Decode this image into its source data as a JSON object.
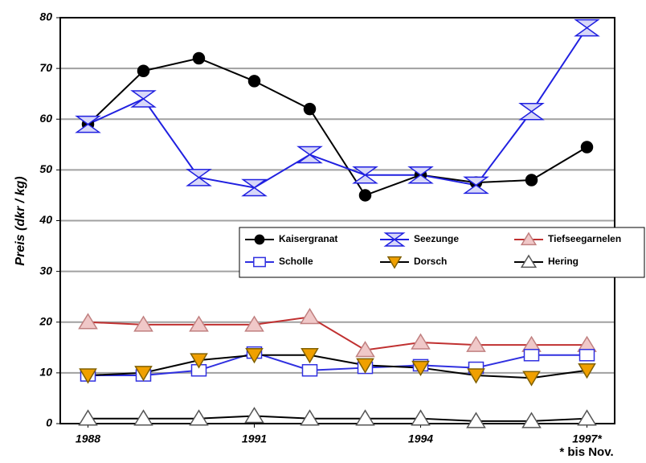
{
  "chart_data": {
    "type": "line",
    "y_label": "Preis  (dkr / kg)",
    "note": "* bis Nov.",
    "xlim": [
      1987.5,
      1997.5
    ],
    "xticks": [
      1988,
      1991,
      1994,
      {
        "value": 1997,
        "label": "1997*"
      }
    ],
    "ylim": [
      0,
      80
    ],
    "yticks": [
      0,
      10,
      20,
      30,
      40,
      50,
      60,
      70,
      80
    ],
    "grid": true,
    "x": [
      1988,
      1989,
      1990,
      1991,
      1992,
      1993,
      1994,
      1995,
      1996,
      1997
    ],
    "series": [
      {
        "name": "Kaisergranat",
        "color": "#000000",
        "marker": "circle",
        "marker_fill": "#000000",
        "values": [
          59,
          69.5,
          72,
          67.5,
          62,
          45,
          49,
          47.5,
          48,
          54.5
        ]
      },
      {
        "name": "Seezunge",
        "color": "#2020e0",
        "marker": "hourglass",
        "marker_fill": "#d8d8f8",
        "values": [
          59,
          64,
          48.5,
          46.5,
          53,
          49,
          49,
          47,
          61.5,
          78
        ]
      },
      {
        "name": "Tiefseegarnelen",
        "color": "#c03030",
        "marker": "triangle",
        "marker_fill": "#f0c8c8",
        "values": [
          20,
          19.5,
          19.5,
          19.5,
          21,
          14.5,
          16,
          15.5,
          15.5,
          15.5
        ]
      },
      {
        "name": "Scholle",
        "color": "#3030e0",
        "marker": "square",
        "marker_fill": "#ffffff",
        "values": [
          9.5,
          9.5,
          10.5,
          14,
          10.5,
          11,
          11.5,
          11,
          13.5,
          13.5
        ]
      },
      {
        "name": "Dorsch",
        "color": "#000000",
        "marker": "down-triangle",
        "marker_fill": "#f0a000",
        "values": [
          9.5,
          10,
          12.5,
          13.5,
          13.5,
          11.5,
          11,
          9.5,
          9,
          10.5
        ]
      },
      {
        "name": "Hering",
        "color": "#000000",
        "marker": "triangle",
        "marker_fill": "#ffffff",
        "values": [
          1,
          1,
          1,
          1.5,
          1,
          1,
          1,
          0.5,
          0.5,
          1
        ]
      }
    ]
  }
}
